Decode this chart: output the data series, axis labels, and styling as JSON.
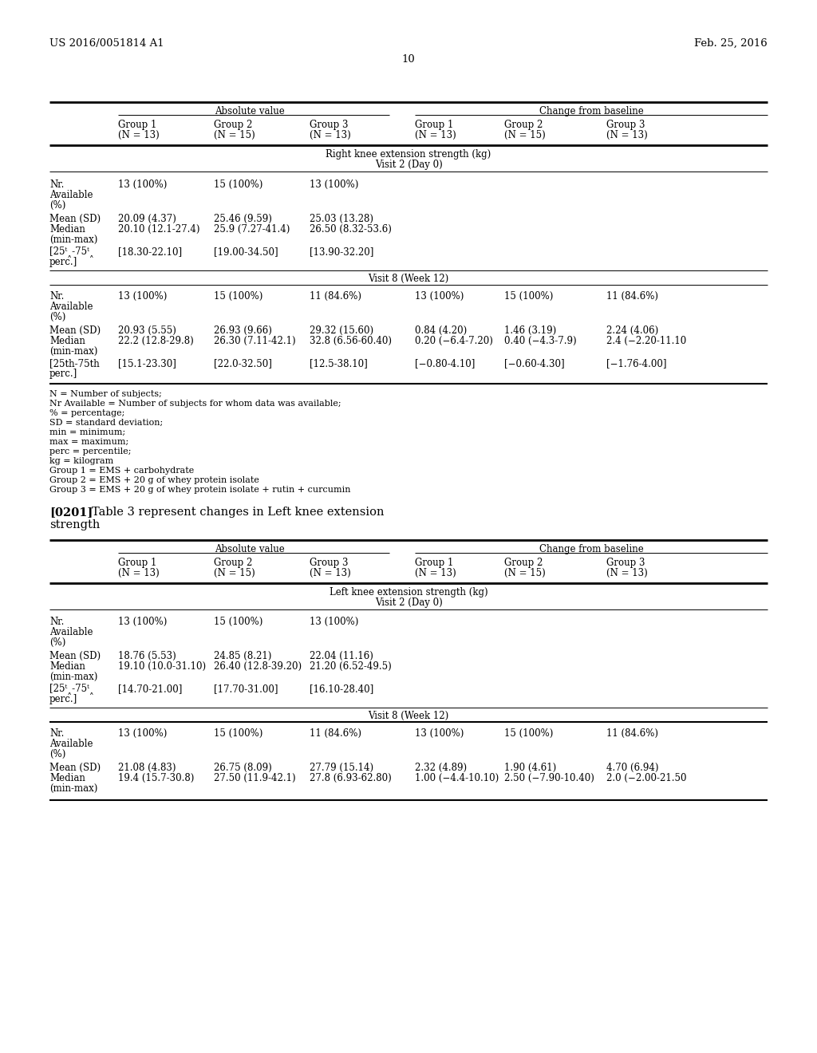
{
  "header_left": "US 2016/0051814 A1",
  "header_right": "Feb. 25, 2016",
  "page_number": "10",
  "abs_value_header": "Absolute value",
  "change_baseline_header": "Change from baseline",
  "table1_title": "Right knee extension strength (kg)",
  "table1_subtitle_v2": "Visit 2 (Day 0)",
  "table1_subtitle_v8": "Visit 8 (Week 12)",
  "table2_para_num": "[0201]",
  "table2_para_text_line1": "Table 3 represent changes in Left knee extension",
  "table2_para_text_line2": "strength",
  "table2_title": "Left knee extension strength (kg)",
  "table2_subtitle_v2": "Visit 2 (Day 0)",
  "table2_subtitle_v8": "Visit 8 (Week 12)",
  "group_headers": [
    [
      "Group 1",
      "(N = 13)"
    ],
    [
      "Group 2",
      "(N = 15)"
    ],
    [
      "Group 3",
      "(N = 13)"
    ],
    [
      "Group 1",
      "(N = 13)"
    ],
    [
      "Group 2",
      "(N = 15)"
    ],
    [
      "Group 3",
      "(N = 13)"
    ]
  ],
  "t1_v2_nr": [
    "13 (100%)",
    "15 (100%)",
    "13 (100%)",
    "",
    "",
    ""
  ],
  "t1_v2_mean": [
    "20.09 (4.37)",
    "25.46 (9.59)",
    "25.03 (13.28)",
    "",
    "",
    ""
  ],
  "t1_v2_median": [
    "20.10 (12.1-27.4)",
    "25.9 (7.27-41.4)",
    "26.50 (8.32-53.6)",
    "",
    "",
    ""
  ],
  "t1_v2_perc": [
    "[18.30-22.10]",
    "[19.00-34.50]",
    "[13.90-32.20]",
    "",
    "",
    ""
  ],
  "t1_v8_nr": [
    "13 (100%)",
    "15 (100%)",
    "11 (84.6%)",
    "13 (100%)",
    "15 (100%)",
    "11 (84.6%)"
  ],
  "t1_v8_mean": [
    "20.93 (5.55)",
    "26.93 (9.66)",
    "29.32 (15.60)",
    "0.84 (4.20)",
    "1.46 (3.19)",
    "2.24 (4.06)"
  ],
  "t1_v8_median": [
    "22.2 (12.8-29.8)",
    "26.30 (7.11-42.1)",
    "32.8 (6.56-60.40)",
    "0.20 (−6.4-7.20)",
    "0.40 (−4.3-7.9)",
    "2.4 (−2.20-11.10"
  ],
  "t1_v8_perc": [
    "[15.1-23.30]",
    "[22.0-32.50]",
    "[12.5-38.10]",
    "[−0.80-4.10]",
    "[−0.60-4.30]",
    "[−1.76-4.00]"
  ],
  "footnotes": [
    "N = Number of subjects;",
    "Nr Available = Number of subjects for whom data was available;",
    "% = percentage;",
    "SD = standard deviation;",
    "min = minimum;",
    "max = maximum;",
    "perc = percentile;",
    "kg = kilogram",
    "Group 1 = EMS + carbohydrate",
    "Group 2 = EMS + 20 g of whey protein isolate",
    "Group 3 = EMS + 20 g of whey protein isolate + rutin + curcumin"
  ],
  "t2_v2_nr": [
    "13 (100%)",
    "15 (100%)",
    "13 (100%)",
    "",
    "",
    ""
  ],
  "t2_v2_mean": [
    "18.76 (5.53)",
    "24.85 (8.21)",
    "22.04 (11.16)",
    "",
    "",
    ""
  ],
  "t2_v2_median": [
    "19.10 (10.0-31.10)",
    "26.40 (12.8-39.20)",
    "21.20 (6.52-49.5)",
    "",
    "",
    ""
  ],
  "t2_v2_perc": [
    "[14.70-21.00]",
    "[17.70-31.00]",
    "[16.10-28.40]",
    "",
    "",
    ""
  ],
  "t2_v8_nr": [
    "13 (100%)",
    "15 (100%)",
    "11 (84.6%)",
    "13 (100%)",
    "15 (100%)",
    "11 (84.6%)"
  ],
  "t2_v8_mean": [
    "21.08 (4.83)",
    "26.75 (8.09)",
    "27.79 (15.14)",
    "2.32 (4.89)",
    "1.90 (4.61)",
    "4.70 (6.94)"
  ],
  "t2_v8_median": [
    "19.4 (15.7-30.8)",
    "27.50 (11.9-42.1)",
    "27.8 (6.93-62.80)",
    "1.00 (−4.4-10.10)",
    "2.50 (−7.90-10.40)",
    "2.0 (−2.00-21.50"
  ]
}
